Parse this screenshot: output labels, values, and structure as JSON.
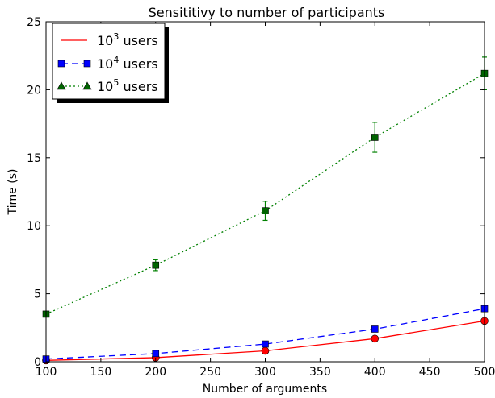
{
  "chart_data": {
    "type": "line",
    "title": "Sensititivy to number of participants",
    "xlabel": "Number of arguments",
    "ylabel": "Time (s)",
    "xlim": [
      100,
      500
    ],
    "ylim": [
      0,
      25
    ],
    "x_ticks": [
      "100",
      "150",
      "200",
      "250",
      "300",
      "350",
      "400",
      "450",
      "500"
    ],
    "y_ticks": [
      "0",
      "5",
      "10",
      "15",
      "20",
      "25"
    ],
    "grid": false,
    "legend_position": "top-left",
    "x": [
      100,
      200,
      300,
      400,
      500
    ],
    "series": [
      {
        "base": "10",
        "exp": "3",
        "suffix": " users",
        "color": "#ff0000",
        "line_style": "solid",
        "marker": "circle",
        "marker_color": "#ff0000",
        "values": [
          0.1,
          0.3,
          0.8,
          1.7,
          3.0
        ],
        "errors": [
          0,
          0,
          0,
          0,
          0
        ]
      },
      {
        "base": "10",
        "exp": "4",
        "suffix": " users",
        "color": "#0000ff",
        "line_style": "dashed",
        "marker": "square",
        "marker_color": "#0000ff",
        "values": [
          0.2,
          0.6,
          1.3,
          2.4,
          3.9
        ],
        "errors": [
          0,
          0,
          0,
          0,
          0
        ]
      },
      {
        "base": "10",
        "exp": "5",
        "suffix": " users",
        "color": "#008000",
        "line_style": "dotted",
        "marker": "triangle",
        "marker_color": "#006400",
        "values": [
          3.5,
          7.1,
          11.1,
          16.5,
          21.2
        ],
        "errors": [
          0.1,
          0.4,
          0.7,
          1.1,
          1.2
        ]
      }
    ]
  }
}
